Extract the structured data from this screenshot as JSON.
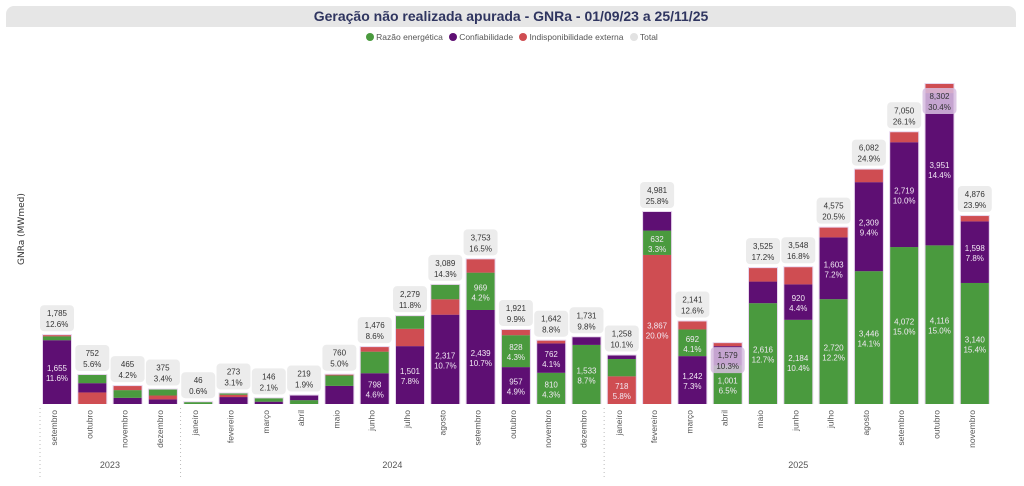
{
  "title": "Geração não realizada apurada - GNRa - 01/09/23 a 25/11/25",
  "legend": [
    {
      "label": "Razão energética",
      "color": "#4a9a3e"
    },
    {
      "label": "Confiabilidade",
      "color": "#5e0f73"
    },
    {
      "label": "Indisponibilidade externa",
      "color": "#cf4d52"
    },
    {
      "label": "Total",
      "color": "#e2e2e2"
    }
  ],
  "chart_data": {
    "type": "bar",
    "stacked": true,
    "title": "Geração não realizada apurada - GNRa - 01/09/23 a 25/11/25",
    "ylabel": "GNRa (MWmed)",
    "xlabel": "",
    "ylim": [
      0,
      8400
    ],
    "series_order": [
      "Razão energética",
      "Confiabilidade",
      "Indisponibilidade externa"
    ],
    "years": [
      {
        "label": "2023",
        "count": 4
      },
      {
        "label": "2024",
        "count": 12
      },
      {
        "label": "2025",
        "count": 11
      }
    ],
    "bars": [
      {
        "month": "setembro",
        "total": "1,785",
        "pct": "12.6%",
        "t": 1785,
        "segs": [
          {
            "s": 1,
            "v": 1655,
            "lbl": "1,655",
            "pct": "11.6%"
          },
          {
            "s": 0,
            "v": 100
          },
          {
            "s": 2,
            "v": 30
          }
        ]
      },
      {
        "month": "outubro",
        "total": "752",
        "pct": "5.6%",
        "t": 752,
        "segs": [
          {
            "s": 2,
            "v": 300
          },
          {
            "s": 1,
            "v": 240
          },
          {
            "s": 0,
            "v": 212
          }
        ]
      },
      {
        "month": "novembro",
        "total": "465",
        "pct": "4.2%",
        "t": 465,
        "segs": [
          {
            "s": 1,
            "v": 160
          },
          {
            "s": 0,
            "v": 200
          },
          {
            "s": 2,
            "v": 105
          }
        ]
      },
      {
        "month": "dezembro",
        "total": "375",
        "pct": "3.4%",
        "t": 375,
        "segs": [
          {
            "s": 1,
            "v": 120
          },
          {
            "s": 2,
            "v": 100
          },
          {
            "s": 0,
            "v": 155
          }
        ]
      },
      {
        "month": "janeiro",
        "total": "46",
        "pct": "0.6%",
        "t": 46,
        "segs": [
          {
            "s": 0,
            "v": 46
          }
        ]
      },
      {
        "month": "fevereiro",
        "total": "273",
        "pct": "3.1%",
        "t": 273,
        "segs": [
          {
            "s": 1,
            "v": 180
          },
          {
            "s": 2,
            "v": 60
          },
          {
            "s": 0,
            "v": 33
          }
        ]
      },
      {
        "month": "março",
        "total": "146",
        "pct": "2.1%",
        "t": 146,
        "segs": [
          {
            "s": 1,
            "v": 60
          },
          {
            "s": 0,
            "v": 86
          }
        ]
      },
      {
        "month": "abril",
        "total": "219",
        "pct": "1.9%",
        "t": 219,
        "segs": [
          {
            "s": 0,
            "v": 100
          },
          {
            "s": 1,
            "v": 119
          }
        ]
      },
      {
        "month": "maio",
        "total": "760",
        "pct": "5.0%",
        "t": 760,
        "segs": [
          {
            "s": 1,
            "v": 470
          },
          {
            "s": 0,
            "v": 270
          },
          {
            "s": 2,
            "v": 20
          }
        ]
      },
      {
        "month": "junho",
        "total": "1,476",
        "pct": "8.6%",
        "t": 1476,
        "segs": [
          {
            "s": 1,
            "v": 798,
            "lbl": "798",
            "pct": "4.6%"
          },
          {
            "s": 0,
            "v": 560
          },
          {
            "s": 2,
            "v": 118
          }
        ]
      },
      {
        "month": "julho",
        "total": "2,279",
        "pct": "11.8%",
        "t": 2279,
        "segs": [
          {
            "s": 1,
            "v": 1501,
            "lbl": "1,501",
            "pct": "7.8%"
          },
          {
            "s": 2,
            "v": 450
          },
          {
            "s": 0,
            "v": 328
          }
        ]
      },
      {
        "month": "agosto",
        "total": "3,089",
        "pct": "14.3%",
        "t": 3089,
        "segs": [
          {
            "s": 1,
            "v": 2317,
            "lbl": "2,317",
            "pct": "10.7%"
          },
          {
            "s": 2,
            "v": 400
          },
          {
            "s": 0,
            "v": 372
          }
        ]
      },
      {
        "month": "setembro",
        "total": "3,753",
        "pct": "16.5%",
        "t": 3753,
        "segs": [
          {
            "s": 1,
            "v": 2439,
            "lbl": "2,439",
            "pct": "10.7%"
          },
          {
            "s": 0,
            "v": 969,
            "lbl": "969",
            "pct": "4.2%"
          },
          {
            "s": 2,
            "v": 345
          }
        ]
      },
      {
        "month": "outubro",
        "total": "1,921",
        "pct": "9.9%",
        "t": 1921,
        "segs": [
          {
            "s": 1,
            "v": 957,
            "lbl": "957",
            "pct": "4.9%"
          },
          {
            "s": 0,
            "v": 828,
            "lbl": "828",
            "pct": "4.3%"
          },
          {
            "s": 2,
            "v": 136
          }
        ]
      },
      {
        "month": "novembro",
        "total": "1,642",
        "pct": "8.8%",
        "t": 1642,
        "segs": [
          {
            "s": 0,
            "v": 810,
            "lbl": "810",
            "pct": "4.3%"
          },
          {
            "s": 1,
            "v": 762,
            "lbl": "762",
            "pct": "4.1%"
          },
          {
            "s": 2,
            "v": 70
          }
        ]
      },
      {
        "month": "dezembro",
        "total": "1,731",
        "pct": "9.8%",
        "t": 1731,
        "segs": [
          {
            "s": 0,
            "v": 1533,
            "lbl": "1,533",
            "pct": "8.7%"
          },
          {
            "s": 1,
            "v": 198
          }
        ]
      },
      {
        "month": "janeiro",
        "total": "1,258",
        "pct": "10.1%",
        "t": 1258,
        "segs": [
          {
            "s": 2,
            "v": 718,
            "lbl": "718",
            "pct": "5.8%"
          },
          {
            "s": 0,
            "v": 450
          },
          {
            "s": 1,
            "v": 90
          }
        ]
      },
      {
        "month": "fevereiro",
        "total": "4,981",
        "pct": "25.8%",
        "t": 4981,
        "segs": [
          {
            "s": 2,
            "v": 3867,
            "lbl": "3,867",
            "pct": "20.0%"
          },
          {
            "s": 0,
            "v": 632,
            "lbl": "632",
            "pct": "3.3%"
          },
          {
            "s": 1,
            "v": 482
          }
        ]
      },
      {
        "month": "março",
        "total": "2,141",
        "pct": "12.6%",
        "t": 2141,
        "segs": [
          {
            "s": 1,
            "v": 1242,
            "lbl": "1,242",
            "pct": "7.3%"
          },
          {
            "s": 0,
            "v": 692,
            "lbl": "692",
            "pct": "4.1%"
          },
          {
            "s": 2,
            "v": 207
          }
        ]
      },
      {
        "month": "abril",
        "total": "1,579",
        "pct": "10.3%",
        "t": 1579,
        "inside": true,
        "segs": [
          {
            "s": 0,
            "v": 1001,
            "lbl": "1,001",
            "pct": "6.5%"
          },
          {
            "s": 1,
            "v": 500
          },
          {
            "s": 2,
            "v": 78
          }
        ]
      },
      {
        "month": "maio",
        "total": "3,525",
        "pct": "17.2%",
        "t": 3525,
        "segs": [
          {
            "s": 0,
            "v": 2616,
            "lbl": "2,616",
            "pct": "12.7%"
          },
          {
            "s": 1,
            "v": 560
          },
          {
            "s": 2,
            "v": 349
          }
        ]
      },
      {
        "month": "junho",
        "total": "3,548",
        "pct": "16.8%",
        "t": 3548,
        "segs": [
          {
            "s": 0,
            "v": 2184,
            "lbl": "2,184",
            "pct": "10.4%"
          },
          {
            "s": 1,
            "v": 920,
            "lbl": "920",
            "pct": "4.4%"
          },
          {
            "s": 2,
            "v": 444
          }
        ]
      },
      {
        "month": "julho",
        "total": "4,575",
        "pct": "20.5%",
        "t": 4575,
        "segs": [
          {
            "s": 0,
            "v": 2720,
            "lbl": "2,720",
            "pct": "12.2%"
          },
          {
            "s": 1,
            "v": 1603,
            "lbl": "1,603",
            "pct": "7.2%"
          },
          {
            "s": 2,
            "v": 252
          }
        ]
      },
      {
        "month": "agosto",
        "total": "6,082",
        "pct": "24.9%",
        "t": 6082,
        "segs": [
          {
            "s": 0,
            "v": 3446,
            "lbl": "3,446",
            "pct": "14.1%"
          },
          {
            "s": 1,
            "v": 2309,
            "lbl": "2,309",
            "pct": "9.4%"
          },
          {
            "s": 2,
            "v": 327
          }
        ]
      },
      {
        "month": "setembro",
        "total": "7,050",
        "pct": "26.1%",
        "t": 7050,
        "segs": [
          {
            "s": 0,
            "v": 4072,
            "lbl": "4,072",
            "pct": "15.0%"
          },
          {
            "s": 1,
            "v": 2719,
            "lbl": "2,719",
            "pct": "10.0%"
          },
          {
            "s": 2,
            "v": 259
          }
        ]
      },
      {
        "month": "outubro",
        "total": "8,302",
        "pct": "30.4%",
        "t": 8302,
        "inside": true,
        "segs": [
          {
            "s": 0,
            "v": 4116,
            "lbl": "4,116",
            "pct": "15.0%"
          },
          {
            "s": 1,
            "v": 3951,
            "lbl": "3,951",
            "pct": "14.4%"
          },
          {
            "s": 2,
            "v": 235
          }
        ]
      },
      {
        "month": "novembro",
        "total": "4,876",
        "pct": "23.9%",
        "t": 4876,
        "segs": [
          {
            "s": 0,
            "v": 3140,
            "lbl": "3,140",
            "pct": "15.4%"
          },
          {
            "s": 1,
            "v": 1598,
            "lbl": "1,598",
            "pct": "7.8%"
          },
          {
            "s": 2,
            "v": 138
          }
        ]
      }
    ]
  }
}
